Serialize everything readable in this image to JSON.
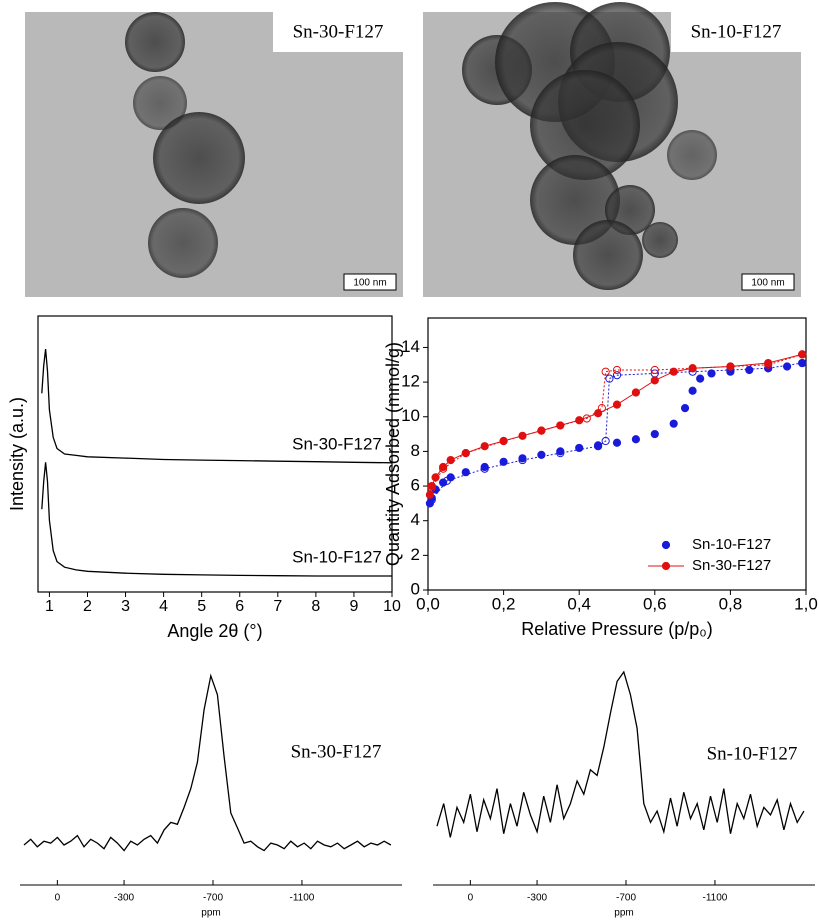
{
  "images": [
    {
      "label": "Sn-30-F127",
      "scale_bar": "100 nm"
    },
    {
      "label": "Sn-10-F127",
      "scale_bar": "100 nm"
    }
  ],
  "chart_data": [
    {
      "type": "line",
      "xlabel": "Angle 2θ (°)",
      "ylabel": "Intensity (a.u.)",
      "frame": true,
      "xlim": [
        0.7,
        10
      ],
      "xticks": [
        1,
        2,
        3,
        4,
        5,
        6,
        7,
        8,
        9,
        10
      ],
      "ylim": [
        0,
        100
      ],
      "x": [
        0.8,
        0.85,
        0.9,
        0.95,
        1.0,
        1.1,
        1.2,
        1.4,
        1.7,
        2,
        3,
        4,
        5,
        6,
        7,
        8,
        9,
        10
      ],
      "series": [
        {
          "name": "Sn-30-F127",
          "color": "#000000",
          "values": [
            72,
            82,
            88,
            80,
            66,
            56,
            52,
            50,
            49.5,
            49,
            48.5,
            48,
            47.8,
            47.6,
            47.4,
            47.2,
            47,
            46.8
          ]
        },
        {
          "name": "Sn-10-F127",
          "color": "#000000",
          "values": [
            30,
            40,
            47,
            40,
            26,
            15,
            11,
            9,
            8,
            7.5,
            6.8,
            6.4,
            6.2,
            6.0,
            5.9,
            5.8,
            5.8,
            5.8
          ]
        }
      ]
    },
    {
      "type": "scatter",
      "xlabel": "Relative Pressure (p/p₀)",
      "ylabel": "Quantity Adsorbed (mmol/g)",
      "frame": true,
      "legend": "lower right",
      "xlim": [
        0,
        1
      ],
      "xticks": [
        {
          "value": 0,
          "label": "0,0"
        },
        {
          "value": 0.2,
          "label": "0,2"
        },
        {
          "value": 0.4,
          "label": "0,4"
        },
        {
          "value": 0.6,
          "label": "0,6"
        },
        {
          "value": 0.8,
          "label": "0,8"
        },
        {
          "value": 1,
          "label": "1,0"
        }
      ],
      "ylim": [
        0,
        15.7
      ],
      "yticks": [
        0,
        2,
        4,
        6,
        8,
        10,
        12,
        14
      ],
      "series": [
        {
          "name": "Sn-10-F127",
          "color": "#1a1adb",
          "marker": "filled",
          "x": [
            0.005,
            0.01,
            0.02,
            0.04,
            0.06,
            0.1,
            0.15,
            0.2,
            0.25,
            0.3,
            0.35,
            0.4,
            0.45,
            0.5,
            0.55,
            0.6,
            0.65,
            0.68,
            0.7,
            0.72,
            0.75,
            0.8,
            0.85,
            0.9,
            0.95,
            0.99
          ],
          "values": [
            5.0,
            5.3,
            5.8,
            6.2,
            6.5,
            6.8,
            7.1,
            7.4,
            7.6,
            7.8,
            8.0,
            8.2,
            8.35,
            8.5,
            8.7,
            9.0,
            9.6,
            10.5,
            11.5,
            12.2,
            12.5,
            12.6,
            12.7,
            12.8,
            12.9,
            13.1
          ]
        },
        {
          "color": "#1a1adb",
          "marker": "open",
          "line": "dotted",
          "x": [
            0.99,
            0.9,
            0.8,
            0.7,
            0.6,
            0.5,
            0.48,
            0.47,
            0.45,
            0.35,
            0.25,
            0.15,
            0.05,
            0.01
          ],
          "values": [
            13.1,
            12.8,
            12.7,
            12.6,
            12.5,
            12.4,
            12.2,
            8.6,
            8.3,
            7.9,
            7.5,
            7.0,
            6.3,
            5.2
          ]
        },
        {
          "name": "Sn-30-F127",
          "color": "#e01010",
          "marker": "filled",
          "line": "solid",
          "x": [
            0.005,
            0.01,
            0.02,
            0.04,
            0.06,
            0.1,
            0.15,
            0.2,
            0.25,
            0.3,
            0.35,
            0.4,
            0.45,
            0.5,
            0.55,
            0.6,
            0.65,
            0.7,
            0.8,
            0.9,
            0.99
          ],
          "values": [
            5.5,
            6.0,
            6.5,
            7.1,
            7.5,
            7.9,
            8.3,
            8.6,
            8.9,
            9.2,
            9.5,
            9.8,
            10.2,
            10.7,
            11.4,
            12.1,
            12.6,
            12.8,
            12.9,
            13.1,
            13.6
          ]
        },
        {
          "color": "#e01010",
          "marker": "open",
          "line": "dotted",
          "x": [
            0.99,
            0.9,
            0.8,
            0.7,
            0.6,
            0.5,
            0.47,
            0.46,
            0.42,
            0.3,
            0.2,
            0.1,
            0.04,
            0.01
          ],
          "values": [
            13.6,
            13.0,
            12.9,
            12.8,
            12.7,
            12.7,
            12.6,
            10.5,
            9.9,
            9.2,
            8.6,
            7.9,
            7.0,
            5.9
          ]
        }
      ]
    },
    {
      "type": "line",
      "xlabel": "ppm",
      "frame": false,
      "xlim": [
        168,
        -1550
      ],
      "xticks": [
        0,
        -300,
        -700,
        -1100
      ],
      "ylim": [
        0,
        100
      ],
      "x": [
        150,
        120,
        90,
        60,
        30,
        0,
        -30,
        -60,
        -90,
        -120,
        -150,
        -180,
        -210,
        -240,
        -270,
        -300,
        -330,
        -360,
        -390,
        -420,
        -450,
        -480,
        -510,
        -540,
        -570,
        -600,
        -630,
        -660,
        -690,
        -720,
        -750,
        -780,
        -810,
        -840,
        -870,
        -900,
        -930,
        -960,
        -990,
        -1020,
        -1050,
        -1080,
        -1110,
        -1140,
        -1170,
        -1200,
        -1230,
        -1260,
        -1290,
        -1320,
        -1350,
        -1380,
        -1410,
        -1440,
        -1470,
        -1500
      ],
      "series": [
        {
          "name": "Sn-30-F127",
          "color": "#000000",
          "values": [
            8,
            11,
            7,
            10,
            9,
            12,
            8,
            10,
            13,
            7,
            11,
            9,
            6,
            12,
            9,
            5,
            10,
            8,
            11,
            13,
            9,
            16,
            20,
            19,
            28,
            38,
            52,
            80,
            98,
            88,
            55,
            25,
            17,
            9,
            10,
            7,
            5,
            9,
            8,
            6,
            10,
            7,
            9,
            6,
            10,
            8,
            7,
            9,
            6,
            8,
            10,
            7,
            9,
            8,
            10,
            8
          ]
        }
      ]
    },
    {
      "type": "line",
      "xlabel": "ppm",
      "frame": false,
      "xlim": [
        168,
        -1550
      ],
      "xticks": [
        0,
        -300,
        -700,
        -1100
      ],
      "ylim": [
        0,
        100
      ],
      "x": [
        150,
        120,
        90,
        60,
        30,
        0,
        -30,
        -60,
        -90,
        -120,
        -150,
        -180,
        -210,
        -240,
        -270,
        -300,
        -330,
        -360,
        -390,
        -420,
        -450,
        -480,
        -510,
        -540,
        -570,
        -600,
        -630,
        -660,
        -690,
        -720,
        -750,
        -780,
        -810,
        -840,
        -870,
        -900,
        -930,
        -960,
        -990,
        -1020,
        -1050,
        -1080,
        -1110,
        -1140,
        -1170,
        -1200,
        -1230,
        -1260,
        -1290,
        -1320,
        -1350,
        -1380,
        -1410,
        -1440,
        -1470,
        -1500
      ],
      "series": [
        {
          "name": "Sn-10-F127",
          "color": "#000000",
          "values": [
            18,
            30,
            12,
            28,
            20,
            35,
            15,
            32,
            22,
            38,
            14,
            30,
            18,
            36,
            24,
            15,
            34,
            20,
            40,
            22,
            30,
            42,
            35,
            48,
            45,
            60,
            78,
            95,
            100,
            88,
            70,
            30,
            20,
            26,
            15,
            33,
            18,
            36,
            22,
            30,
            16,
            34,
            20,
            38,
            14,
            30,
            22,
            35,
            18,
            28,
            24,
            32,
            16,
            30,
            20,
            26
          ]
        }
      ]
    }
  ]
}
